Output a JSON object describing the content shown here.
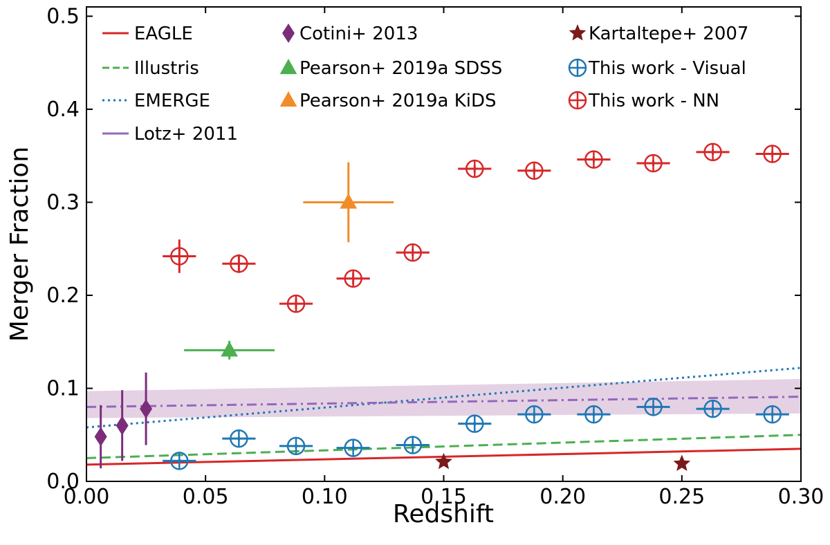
{
  "chart_data": {
    "type": "scatter",
    "title": "",
    "xlabel": "Redshift",
    "ylabel": "Merger Fraction",
    "xlim": [
      0.0,
      0.3
    ],
    "ylim": [
      0.0,
      0.51
    ],
    "xticks": [
      "0.00",
      "0.05",
      "0.10",
      "0.15",
      "0.20",
      "0.25",
      "0.30"
    ],
    "xtick_values": [
      0.0,
      0.05,
      0.1,
      0.15,
      0.2,
      0.25,
      0.3
    ],
    "yticks": [
      "0.0",
      "0.1",
      "0.2",
      "0.3",
      "0.4",
      "0.5"
    ],
    "ytick_values": [
      0.0,
      0.1,
      0.2,
      0.3,
      0.4,
      0.5
    ],
    "grid": false,
    "legend_position": "top",
    "colors": {
      "eagle": "#d62728",
      "illustris": "#4caf50",
      "emerge": "#1f77b4",
      "lotz": "#9467bd",
      "lotz_band": "#d8bfd8",
      "cotini": "#7b2d7b",
      "pearson_sdss": "#4caf50",
      "pearson_kids": "#f28c28",
      "kartaltepe": "#7a1a1a",
      "visual": "#1f77b4",
      "nn": "#d62728"
    },
    "lines": [
      {
        "name": "EAGLE",
        "style": "solid",
        "x": [
          0.0,
          0.3
        ],
        "y": [
          0.018,
          0.035
        ]
      },
      {
        "name": "Illustris",
        "style": "dashed",
        "x": [
          0.0,
          0.3
        ],
        "y": [
          0.025,
          0.05
        ]
      },
      {
        "name": "EMERGE",
        "style": "dotted",
        "x": [
          0.0,
          0.3
        ],
        "y": [
          0.058,
          0.122
        ]
      },
      {
        "name": "Lotz+ 2011",
        "style": "dashdot",
        "x": [
          0.0,
          0.3
        ],
        "y": [
          0.08,
          0.091
        ],
        "band_low": [
          0.068,
          0.073
        ],
        "band_high": [
          0.097,
          0.11
        ]
      }
    ],
    "series": [
      {
        "name": "Cotini+ 2013",
        "marker": "diamond",
        "points": [
          {
            "x": 0.006,
            "y": 0.048,
            "yerr": 0.034
          },
          {
            "x": 0.015,
            "y": 0.06,
            "yerr": 0.038
          },
          {
            "x": 0.025,
            "y": 0.078,
            "yerr": 0.039
          }
        ]
      },
      {
        "name": "Pearson+ 2019a SDSS",
        "marker": "triangle",
        "points": [
          {
            "x": 0.06,
            "y": 0.141,
            "xerr": 0.019,
            "yerr": 0.01
          }
        ]
      },
      {
        "name": "Pearson+ 2019a KiDS",
        "marker": "triangle",
        "points": [
          {
            "x": 0.11,
            "y": 0.3,
            "xerr": 0.019,
            "yerr": 0.043
          }
        ]
      },
      {
        "name": "Kartaltepe+ 2007",
        "marker": "star",
        "points": [
          {
            "x": 0.15,
            "y": 0.021
          },
          {
            "x": 0.25,
            "y": 0.019
          }
        ]
      },
      {
        "name": "This work - Visual",
        "marker": "open-circle-cross",
        "points": [
          {
            "x": 0.039,
            "y": 0.022,
            "xerr": 0.007,
            "yerr": 0.002
          },
          {
            "x": 0.064,
            "y": 0.046,
            "xerr": 0.007,
            "yerr": 0.002
          },
          {
            "x": 0.088,
            "y": 0.038,
            "xerr": 0.007,
            "yerr": 0.002
          },
          {
            "x": 0.112,
            "y": 0.036,
            "xerr": 0.007,
            "yerr": 0.002
          },
          {
            "x": 0.137,
            "y": 0.039,
            "xerr": 0.007,
            "yerr": 0.002
          },
          {
            "x": 0.163,
            "y": 0.062,
            "xerr": 0.007,
            "yerr": 0.002
          },
          {
            "x": 0.188,
            "y": 0.072,
            "xerr": 0.007,
            "yerr": 0.002
          },
          {
            "x": 0.213,
            "y": 0.072,
            "xerr": 0.007,
            "yerr": 0.002
          },
          {
            "x": 0.238,
            "y": 0.08,
            "xerr": 0.007,
            "yerr": 0.002
          },
          {
            "x": 0.263,
            "y": 0.078,
            "xerr": 0.007,
            "yerr": 0.002
          },
          {
            "x": 0.288,
            "y": 0.072,
            "xerr": 0.007,
            "yerr": 0.002
          }
        ]
      },
      {
        "name": "This work - NN",
        "marker": "open-circle-cross",
        "points": [
          {
            "x": 0.039,
            "y": 0.242,
            "xerr": 0.007,
            "yerr": 0.018
          },
          {
            "x": 0.064,
            "y": 0.234,
            "xerr": 0.007,
            "yerr": 0.01
          },
          {
            "x": 0.088,
            "y": 0.191,
            "xerr": 0.007,
            "yerr": 0.006
          },
          {
            "x": 0.112,
            "y": 0.218,
            "xerr": 0.007,
            "yerr": 0.006
          },
          {
            "x": 0.137,
            "y": 0.246,
            "xerr": 0.007,
            "yerr": 0.004
          },
          {
            "x": 0.163,
            "y": 0.336,
            "xerr": 0.007,
            "yerr": 0.004
          },
          {
            "x": 0.188,
            "y": 0.334,
            "xerr": 0.007,
            "yerr": 0.003
          },
          {
            "x": 0.213,
            "y": 0.346,
            "xerr": 0.007,
            "yerr": 0.003
          },
          {
            "x": 0.238,
            "y": 0.342,
            "xerr": 0.007,
            "yerr": 0.003
          },
          {
            "x": 0.263,
            "y": 0.354,
            "xerr": 0.007,
            "yerr": 0.003
          },
          {
            "x": 0.288,
            "y": 0.352,
            "xerr": 0.007,
            "yerr": 0.003
          }
        ]
      }
    ],
    "legend": [
      {
        "label": "EAGLE",
        "key": "eagle",
        "kind": "line-solid"
      },
      {
        "label": "Illustris",
        "key": "illustris",
        "kind": "line-dashed"
      },
      {
        "label": "EMERGE",
        "key": "emerge",
        "kind": "line-dotted"
      },
      {
        "label": "Lotz+ 2011",
        "key": "lotz",
        "kind": "line-solid"
      },
      {
        "label": "Cotini+ 2013",
        "key": "cotini",
        "kind": "diamond"
      },
      {
        "label": "Pearson+ 2019a SDSS",
        "key": "pearson_sdss",
        "kind": "triangle"
      },
      {
        "label": "Pearson+ 2019a KiDS",
        "key": "pearson_kids",
        "kind": "triangle"
      },
      {
        "label": "Kartaltepe+ 2007",
        "key": "kartaltepe",
        "kind": "star"
      },
      {
        "label": "This work - Visual",
        "key": "visual",
        "kind": "open-circle-cross"
      },
      {
        "label": "This work - NN",
        "key": "nn",
        "kind": "open-circle-cross"
      }
    ]
  }
}
